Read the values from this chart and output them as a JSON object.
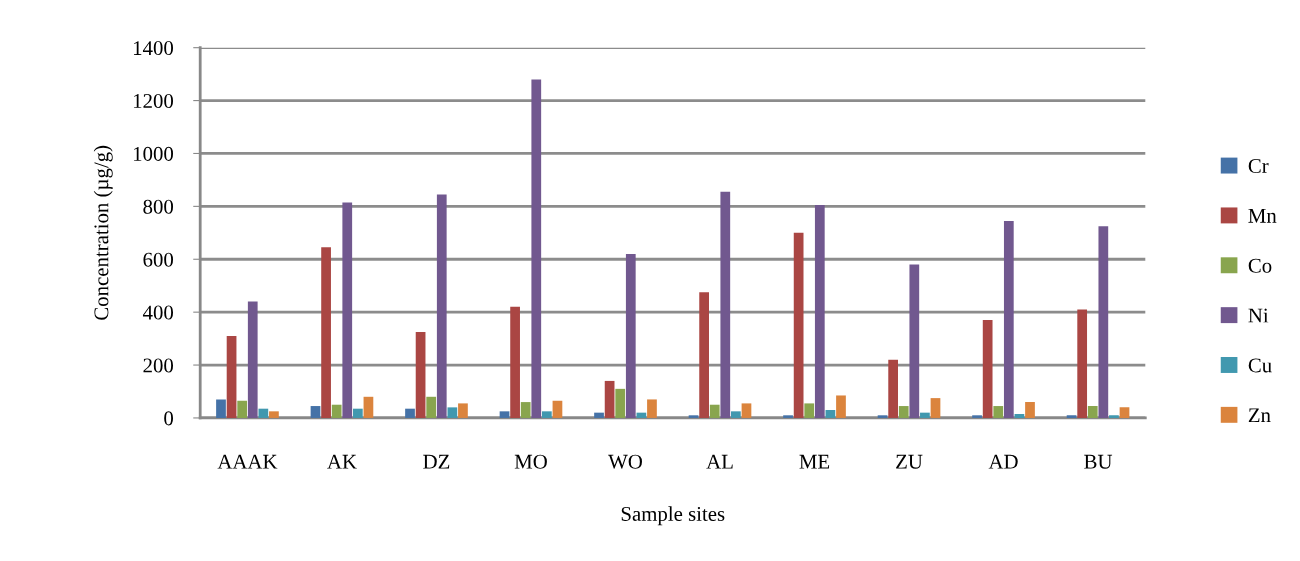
{
  "chart_data": {
    "type": "bar",
    "xlabel": "Sample sites",
    "ylabel": "Concentration (µg/g)",
    "categories": [
      "AAAK",
      "AK",
      "DZ",
      "MO",
      "WO",
      "AL",
      "ME",
      "ZU",
      "AD",
      "BU"
    ],
    "series": [
      {
        "name": "Cr",
        "color": "#4572a7",
        "values": [
          70,
          45,
          35,
          25,
          20,
          10,
          10,
          10,
          10,
          10
        ]
      },
      {
        "name": "Mn",
        "color": "#aa4643",
        "values": [
          310,
          645,
          325,
          420,
          140,
          475,
          700,
          220,
          370,
          410
        ]
      },
      {
        "name": "Co",
        "color": "#89a54e",
        "values": [
          65,
          50,
          80,
          60,
          110,
          50,
          55,
          45,
          45,
          45
        ]
      },
      {
        "name": "Ni",
        "color": "#71588f",
        "values": [
          440,
          815,
          845,
          1280,
          620,
          855,
          805,
          580,
          745,
          725
        ]
      },
      {
        "name": "Cu",
        "color": "#4198af",
        "values": [
          35,
          35,
          40,
          25,
          20,
          25,
          30,
          20,
          15,
          10
        ]
      },
      {
        "name": "Zn",
        "color": "#db843d",
        "values": [
          25,
          80,
          55,
          65,
          70,
          55,
          85,
          75,
          60,
          40
        ]
      }
    ],
    "ylim": [
      0,
      1400
    ],
    "yticks": [
      0,
      200,
      400,
      600,
      800,
      1000,
      1200,
      1400
    ],
    "grid": "y",
    "legend": "right"
  }
}
